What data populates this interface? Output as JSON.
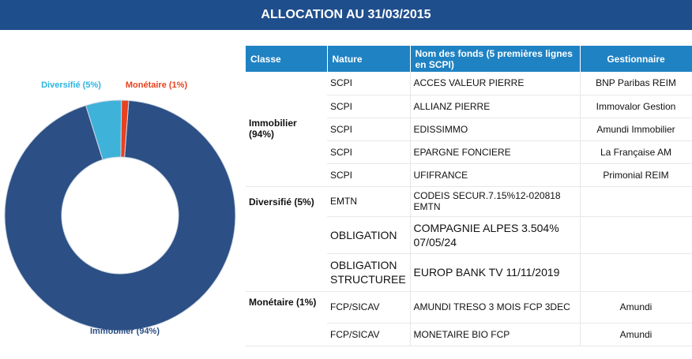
{
  "header": {
    "title": "ALLOCATION AU 31/03/2015"
  },
  "chart_data": {
    "type": "pie",
    "donut": true,
    "slices": [
      {
        "label": "Immobilier (94%)",
        "value": 94,
        "color": "#2c4f85"
      },
      {
        "label": "Diversifié (5%)",
        "value": 5,
        "color": "#3fb2d9"
      },
      {
        "label": "Monétaire (1%)",
        "value": 1,
        "color": "#e8411f"
      }
    ],
    "label_colors": [
      "#2c4f85",
      "#2bb5e0",
      "#e8411f"
    ]
  },
  "table": {
    "headers": [
      "Classe",
      "Nature",
      "Nom des fonds (5 premières lignes en SCPI)",
      "Gestionnaire"
    ],
    "classes": {
      "immobilier": "Immobilier (94%)",
      "diversifie": "Diversifié (5%)",
      "monetaire": "Monétaire (1%)"
    },
    "rows": [
      {
        "nature": "SCPI",
        "fonds": "ACCES VALEUR PIERRE",
        "gestionnaire": "BNP Paribas REIM"
      },
      {
        "nature": "SCPI",
        "fonds": "ALLIANZ PIERRE",
        "gestionnaire": "Immovalor Gestion"
      },
      {
        "nature": "SCPI",
        "fonds": "EDISSIMMO",
        "gestionnaire": "Amundi Immobilier"
      },
      {
        "nature": "SCPI",
        "fonds": "EPARGNE FONCIERE",
        "gestionnaire": "La Française AM"
      },
      {
        "nature": "SCPI",
        "fonds": "UFIFRANCE",
        "gestionnaire": "Primonial REIM"
      },
      {
        "nature": "EMTN",
        "fonds": "CODEIS SECUR.7.15%12-020818 EMTN",
        "gestionnaire": ""
      },
      {
        "nature": "OBLIGATION",
        "fonds": "COMPAGNIE ALPES 3.504% 07/05/24",
        "gestionnaire": ""
      },
      {
        "nature": "OBLIGATION STRUCTUREE",
        "fonds": "EUROP BANK TV 11/11/2019",
        "gestionnaire": ""
      },
      {
        "nature": "FCP/SICAV",
        "fonds": "AMUNDI TRESO 3 MOIS FCP 3DEC",
        "gestionnaire": "Amundi"
      },
      {
        "nature": "FCP/SICAV",
        "fonds": "MONETAIRE BIO FCP",
        "gestionnaire": "Amundi"
      }
    ]
  }
}
